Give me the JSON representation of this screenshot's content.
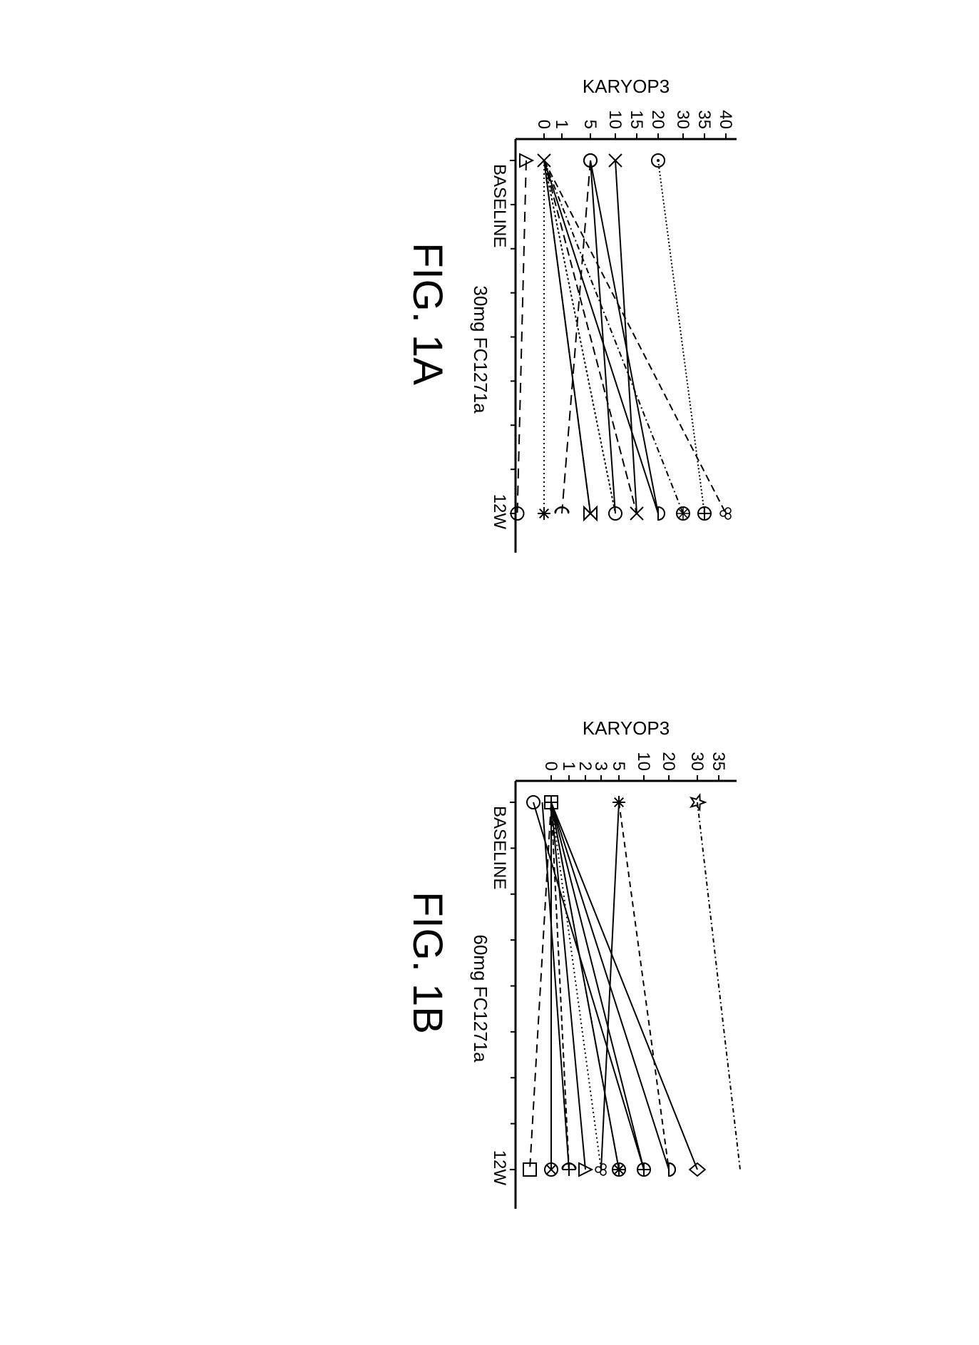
{
  "figure": {
    "background_color": "#ffffff",
    "stroke_color": "#000000",
    "font_family": "Arial",
    "caption_fontsize": 58,
    "caption_fontweight": 400,
    "panels": [
      {
        "id": "A",
        "caption": "FIG. 1A",
        "x_label": "30mg FC1271a",
        "y_label": "KARYOP3",
        "x_ticks": [
          "BASELINE",
          "12W"
        ],
        "y_ticks": [
          0,
          1,
          5,
          10,
          15,
          20,
          30,
          35,
          40
        ],
        "y_positions": [
          290,
          265,
          225,
          190,
          160,
          130,
          95,
          65,
          35
        ],
        "axis_fontsize": 24,
        "label_fontsize": 26,
        "line_width": 2,
        "series": [
          {
            "baseline": 0,
            "week12": 40,
            "dash": "10,6",
            "marker_b": "none",
            "marker_w": "clover"
          },
          {
            "baseline": 20,
            "week12": 35,
            "dash": "2,3",
            "marker_b": "dotcircle",
            "marker_w": "circleplus"
          },
          {
            "baseline": 0,
            "week12": 30,
            "dash": "8,4,2,4",
            "marker_b": "none",
            "marker_w": "asterisk-circle"
          },
          {
            "baseline": 0,
            "week12": 20,
            "dash": "none",
            "marker_b": "none",
            "marker_w": "halfcircle"
          },
          {
            "baseline": 5,
            "week12": 20,
            "dash": "none",
            "marker_b": "circle",
            "marker_w": "none"
          },
          {
            "baseline": 10,
            "week12": 15,
            "dash": "none",
            "marker_b": "x",
            "marker_w": "x"
          },
          {
            "baseline": 0,
            "week12": 15,
            "dash": "12,6",
            "marker_b": "none",
            "marker_w": "none"
          },
          {
            "baseline": 5,
            "week12": 10,
            "dash": "none",
            "marker_b": "circle",
            "marker_w": "circle"
          },
          {
            "baseline": 0,
            "week12": 10,
            "dash": "3,3",
            "marker_b": "none",
            "marker_w": "none"
          },
          {
            "baseline": 0,
            "week12": 5,
            "dash": "none",
            "marker_b": "none",
            "marker_w": "hourglass"
          },
          {
            "baseline": 0,
            "week12": 5,
            "dash": "8,4",
            "marker_b": "none",
            "marker_w": "x"
          },
          {
            "baseline": 5,
            "week12": 1,
            "dash": "14,8",
            "marker_b": "none",
            "marker_w": "moon"
          },
          {
            "baseline": 0,
            "week12": 0,
            "dash": "2,4",
            "marker_b": "x",
            "marker_w": "asterisk"
          },
          {
            "baseline": -1,
            "week12": -1.5,
            "dash": "14,10",
            "marker_b": "triangle",
            "marker_w": "circle"
          }
        ]
      },
      {
        "id": "B",
        "caption": "FIG. 1B",
        "x_label": "60mg FC1271a",
        "y_label": "KARYOP3",
        "x_ticks": [
          "BASELINE",
          "12W"
        ],
        "y_ticks": [
          0,
          1,
          2,
          3,
          5,
          10,
          20,
          30,
          35
        ],
        "y_positions": [
          280,
          255,
          232,
          210,
          185,
          150,
          115,
          75,
          45
        ],
        "axis_fontsize": 24,
        "label_fontsize": 26,
        "line_width": 2,
        "series": [
          {
            "baseline": 30,
            "week12": 40,
            "dash": "6,4,2,4",
            "marker_b": "star",
            "marker_w": "none"
          },
          {
            "baseline": 0,
            "week12": 30,
            "dash": "none",
            "marker_b": "none",
            "marker_w": "diamond"
          },
          {
            "baseline": 0,
            "week12": 20,
            "dash": "none",
            "marker_b": "none",
            "marker_w": "halfcircle"
          },
          {
            "baseline": 5,
            "week12": 20,
            "dash": "8,6",
            "marker_b": "asterisk",
            "marker_w": "halfcircle"
          },
          {
            "baseline": 0,
            "week12": 10,
            "dash": "none",
            "marker_b": "none",
            "marker_w": "circleplus"
          },
          {
            "baseline": -1,
            "week12": 10,
            "dash": "none",
            "marker_b": "circle",
            "marker_w": "none"
          },
          {
            "baseline": 0,
            "week12": 5,
            "dash": "none",
            "marker_b": "none",
            "marker_w": "asterisk-circle"
          },
          {
            "baseline": 0,
            "week12": 5,
            "dash": "3,3",
            "marker_b": "squareplus",
            "marker_w": "asterisk"
          },
          {
            "baseline": 5,
            "week12": 3,
            "dash": "none",
            "marker_b": "none",
            "marker_w": "clover"
          },
          {
            "baseline": 0,
            "week12": 3,
            "dash": "2,4",
            "marker_b": "none",
            "marker_w": "none"
          },
          {
            "baseline": 0,
            "week12": 2,
            "dash": "none",
            "marker_b": "none",
            "marker_w": "triangle"
          },
          {
            "baseline": 0,
            "week12": 1,
            "dash": "8,5",
            "marker_b": "none",
            "marker_w": "moon"
          },
          {
            "baseline": -0.5,
            "week12": 1,
            "dash": "none",
            "marker_b": "none",
            "marker_w": "plus"
          },
          {
            "baseline": 0,
            "week12": 0,
            "dash": "none",
            "marker_b": "squareplus",
            "marker_w": "circlecross"
          },
          {
            "baseline": 0,
            "week12": -1.2,
            "dash": "12,8",
            "marker_b": "none",
            "marker_w": "square"
          }
        ]
      }
    ]
  }
}
